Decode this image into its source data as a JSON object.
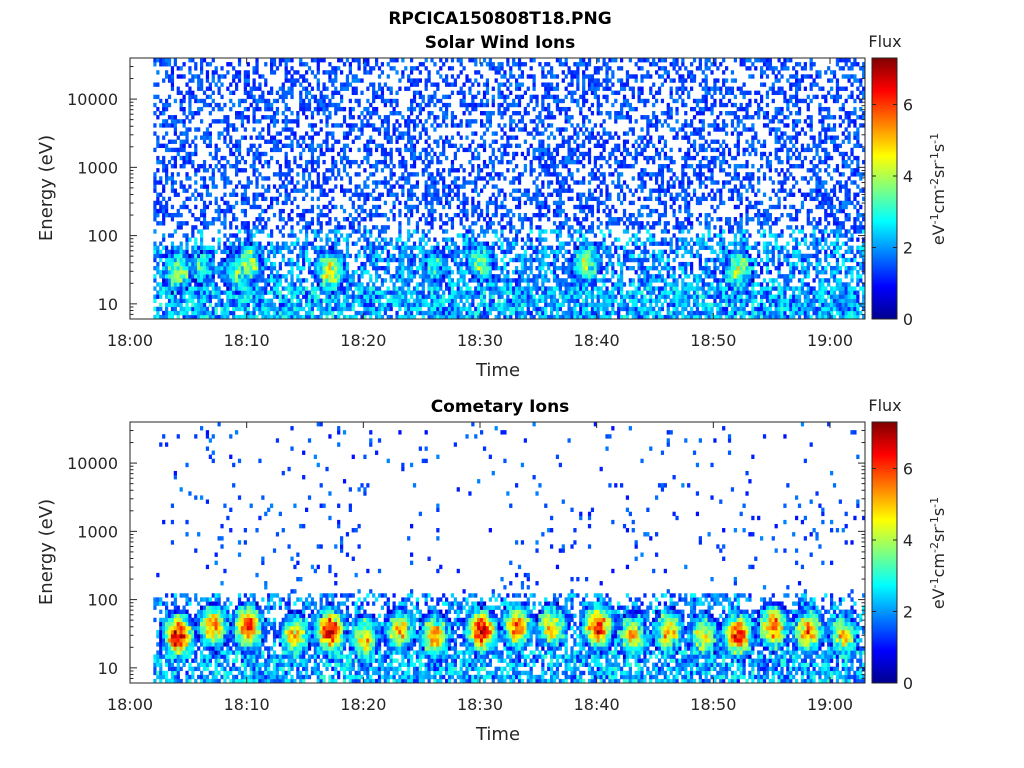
{
  "figure": {
    "title": "RPCICA150808T18.PNG",
    "colorbar_title": "Flux",
    "colorbar_label": "eV-1cm-2sr-1s-1",
    "colormap": "jet"
  },
  "chart_data": [
    {
      "type": "heatmap",
      "title": "Solar Wind Ions",
      "xlabel": "Time",
      "ylabel": "Energy (eV)",
      "x_ticks": [
        "18:00",
        "18:10",
        "18:20",
        "18:30",
        "18:40",
        "18:50",
        "19:00"
      ],
      "y_ticks": [
        "10",
        "100",
        "1000",
        "10000"
      ],
      "y_scale": "log",
      "ylim": [
        6,
        40000
      ],
      "xlim": [
        "18:00",
        "19:03"
      ],
      "data_start": "18:02",
      "colorbar_ticks": [
        "0",
        "2",
        "4",
        "6"
      ],
      "clim": [
        0,
        7.3
      ],
      "bursts": [
        {
          "time": "18:04",
          "energy": 30,
          "level": 4.0
        },
        {
          "time": "18:06",
          "energy": 35,
          "level": 3.0
        },
        {
          "time": "18:09",
          "energy": 30,
          "level": 3.5
        },
        {
          "time": "18:10",
          "energy": 40,
          "level": 4.0
        },
        {
          "time": "18:17",
          "energy": 30,
          "level": 4.5
        },
        {
          "time": "18:26",
          "energy": 35,
          "level": 3.0
        },
        {
          "time": "18:30",
          "energy": 40,
          "level": 3.5
        },
        {
          "time": "18:39",
          "energy": 40,
          "level": 4.0
        },
        {
          "time": "18:52",
          "energy": 30,
          "level": 4.0
        }
      ]
    },
    {
      "type": "heatmap",
      "title": "Cometary Ions",
      "xlabel": "Time",
      "ylabel": "Energy (eV)",
      "x_ticks": [
        "18:00",
        "18:10",
        "18:20",
        "18:30",
        "18:40",
        "18:50",
        "19:00"
      ],
      "y_ticks": [
        "10",
        "100",
        "1000",
        "10000"
      ],
      "y_scale": "log",
      "ylim": [
        6,
        40000
      ],
      "xlim": [
        "18:00",
        "19:03"
      ],
      "data_start": "18:02",
      "colorbar_ticks": [
        "0",
        "2",
        "4",
        "6"
      ],
      "clim": [
        0,
        7.3
      ],
      "bursts": [
        {
          "time": "18:04",
          "energy": 30,
          "level": 6.8
        },
        {
          "time": "18:07",
          "energy": 40,
          "level": 5.5
        },
        {
          "time": "18:10",
          "energy": 40,
          "level": 6.3
        },
        {
          "time": "18:14",
          "energy": 30,
          "level": 5.0
        },
        {
          "time": "18:17",
          "energy": 35,
          "level": 6.8
        },
        {
          "time": "18:20",
          "energy": 28,
          "level": 4.8
        },
        {
          "time": "18:23",
          "energy": 35,
          "level": 5.0
        },
        {
          "time": "18:26",
          "energy": 30,
          "level": 5.5
        },
        {
          "time": "18:30",
          "energy": 35,
          "level": 6.7
        },
        {
          "time": "18:33",
          "energy": 40,
          "level": 5.8
        },
        {
          "time": "18:36",
          "energy": 40,
          "level": 5.0
        },
        {
          "time": "18:40",
          "energy": 40,
          "level": 6.5
        },
        {
          "time": "18:43",
          "energy": 30,
          "level": 5.0
        },
        {
          "time": "18:46",
          "energy": 35,
          "level": 5.0
        },
        {
          "time": "18:49",
          "energy": 30,
          "level": 4.5
        },
        {
          "time": "18:52",
          "energy": 30,
          "level": 6.6
        },
        {
          "time": "18:55",
          "energy": 40,
          "level": 5.8
        },
        {
          "time": "18:58",
          "energy": 35,
          "level": 5.5
        },
        {
          "time": "19:01",
          "energy": 30,
          "level": 4.8
        }
      ]
    }
  ]
}
